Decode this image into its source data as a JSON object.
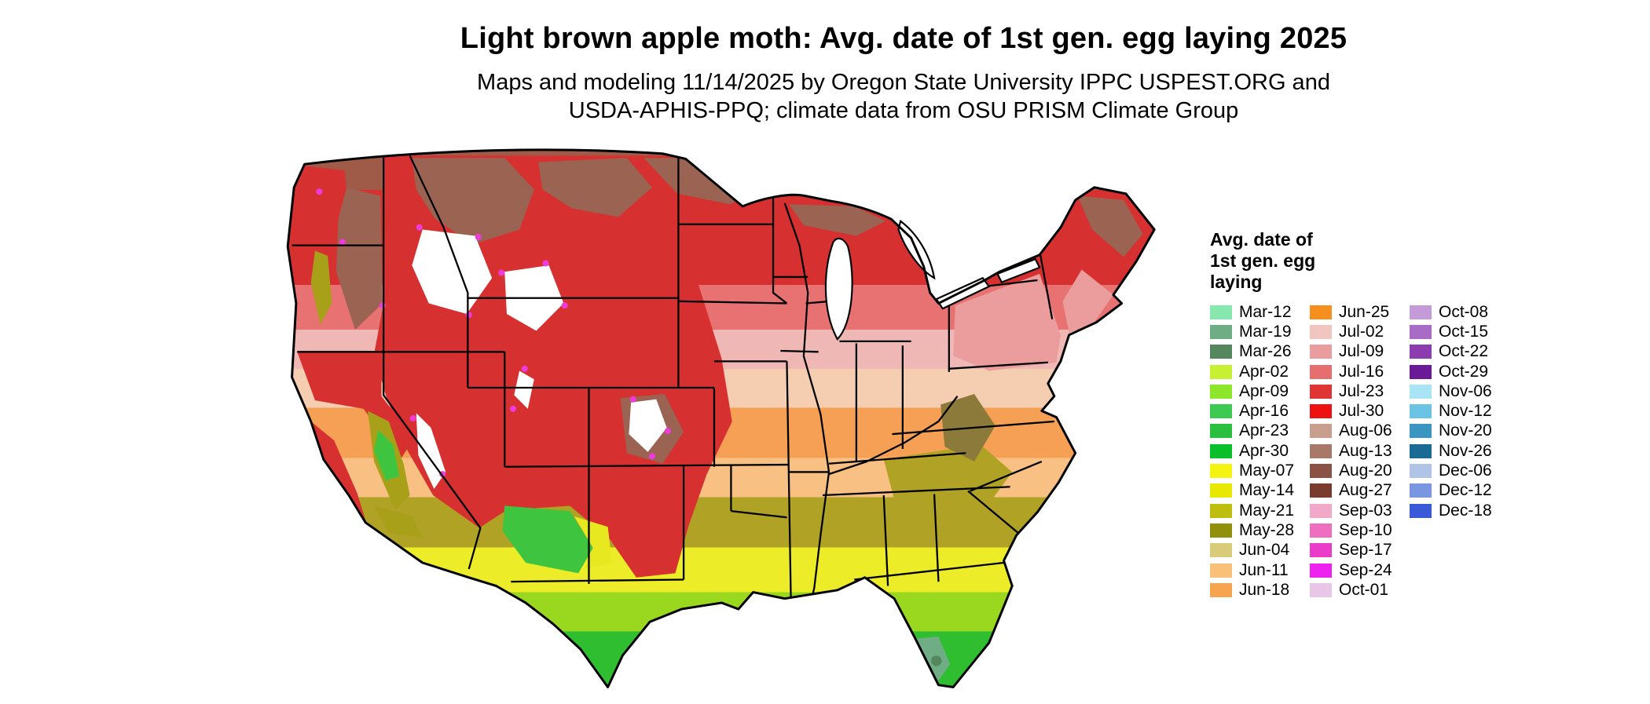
{
  "header": {
    "title": "Light brown apple moth: Avg. date of 1st gen. egg laying 2025",
    "subtitle_line1": "Maps and modeling 11/14/2025 by Oregon State University IPPC USPEST.ORG and",
    "subtitle_line2": "USDA-APHIS-PPQ; climate data from OSU PRISM Climate Group"
  },
  "map": {
    "region": "contiguous United States",
    "kind": "raster choropleth of average date of first generation egg laying"
  },
  "legend": {
    "title_lines": [
      "Avg. date of",
      "1st gen. egg",
      "laying"
    ],
    "columns": [
      {
        "entries": [
          {
            "label": "Mar-12",
            "color": "#86e8ae"
          },
          {
            "label": "Mar-19",
            "color": "#6fae85"
          },
          {
            "label": "Mar-26",
            "color": "#55875f"
          },
          {
            "label": "Apr-02",
            "color": "#c8f032"
          },
          {
            "label": "Apr-09",
            "color": "#8ee62a"
          },
          {
            "label": "Apr-16",
            "color": "#3ec952"
          },
          {
            "label": "Apr-23",
            "color": "#2bbf3f"
          },
          {
            "label": "Apr-30",
            "color": "#0abf2a"
          },
          {
            "label": "May-07",
            "color": "#f4f410"
          },
          {
            "label": "May-14",
            "color": "#e8e800"
          },
          {
            "label": "May-21",
            "color": "#bebe0e"
          },
          {
            "label": "May-28",
            "color": "#90900a"
          },
          {
            "label": "Jun-04",
            "color": "#d8cc7a"
          },
          {
            "label": "Jun-11",
            "color": "#f8c078"
          },
          {
            "label": "Jun-18",
            "color": "#f8a44e"
          }
        ]
      },
      {
        "entries": [
          {
            "label": "Jun-25",
            "color": "#f5901e"
          },
          {
            "label": "Jul-02",
            "color": "#f2c6c0"
          },
          {
            "label": "Jul-09",
            "color": "#eb9d9d"
          },
          {
            "label": "Jul-16",
            "color": "#e66e6e"
          },
          {
            "label": "Jul-23",
            "color": "#e03535"
          },
          {
            "label": "Jul-30",
            "color": "#ee1111"
          },
          {
            "label": "Aug-06",
            "color": "#c89f8c"
          },
          {
            "label": "Aug-13",
            "color": "#a87868"
          },
          {
            "label": "Aug-20",
            "color": "#8a5244"
          },
          {
            "label": "Aug-27",
            "color": "#7a3c2e"
          },
          {
            "label": "Sep-03",
            "color": "#f2a8c8"
          },
          {
            "label": "Sep-10",
            "color": "#ee6ec0"
          },
          {
            "label": "Sep-17",
            "color": "#ea3cc8"
          },
          {
            "label": "Sep-24",
            "color": "#ee22ee"
          },
          {
            "label": "Oct-01",
            "color": "#e8c6e8"
          }
        ]
      },
      {
        "entries": [
          {
            "label": "Oct-08",
            "color": "#c49ad8"
          },
          {
            "label": "Oct-15",
            "color": "#a86cc4"
          },
          {
            "label": "Oct-22",
            "color": "#8a3cb0"
          },
          {
            "label": "Oct-29",
            "color": "#6a1a96"
          },
          {
            "label": "Nov-06",
            "color": "#a8e4f4"
          },
          {
            "label": "Nov-12",
            "color": "#6cc4e4"
          },
          {
            "label": "Nov-20",
            "color": "#3a96c0"
          },
          {
            "label": "Nov-26",
            "color": "#1a6a96"
          },
          {
            "label": "Dec-06",
            "color": "#b0c4e8"
          },
          {
            "label": "Dec-12",
            "color": "#7a96e0"
          },
          {
            "label": "Dec-18",
            "color": "#3a5ad8"
          }
        ]
      }
    ]
  }
}
